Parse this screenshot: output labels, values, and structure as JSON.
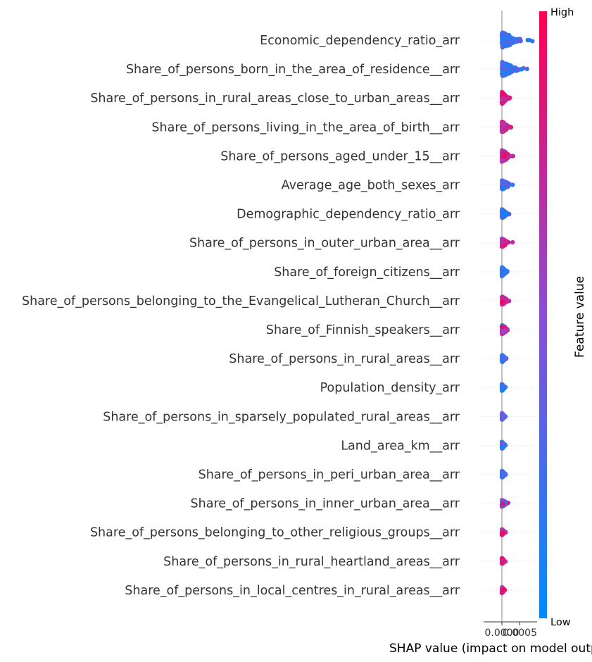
{
  "chart_data": {
    "type": "scatter",
    "subtype": "shap-beeswarm",
    "xlabel": "SHAP value (impact on model output)",
    "x_ticks": [
      {
        "value": 0.0,
        "label": "0.0000"
      },
      {
        "value": 0.0005,
        "label": "0.0005"
      }
    ],
    "xlim": [
      -0.00048,
      0.00092
    ],
    "colorbar": {
      "label": "Feature value",
      "high_label": "High",
      "low_label": "Low",
      "colors": {
        "low": "#008bfb",
        "mid": "#8a4dd6",
        "high": "#ff0052"
      }
    },
    "features": [
      {
        "name": "Economic_dependency_ratio_arr",
        "min": -0.00045,
        "max": 0.00085,
        "high_side": "left",
        "density": 1.0
      },
      {
        "name": "Share_of_persons_born_in_the_area_of_residence__arr",
        "min": -0.00045,
        "max": 0.0007,
        "high_side": "left",
        "density": 0.95
      },
      {
        "name": "Share_of_persons_in_rural_areas_close_to_urban_areas__arr",
        "min": -0.00015,
        "max": 0.00025,
        "high_side": "right",
        "density": 0.8
      },
      {
        "name": "Share_of_persons_living_in_the_area_of_birth__arr",
        "min": -0.0003,
        "max": 0.00025,
        "high_side": "right",
        "density": 0.7
      },
      {
        "name": "Share_of_persons_aged_under_15__arr",
        "min": -0.0003,
        "max": 0.0004,
        "high_side": "right",
        "density": 0.75
      },
      {
        "name": "Average_age_both_sexes_arr",
        "min": -0.0003,
        "max": 0.0003,
        "high_side": "left",
        "density": 0.65
      },
      {
        "name": "Demographic_dependency_ratio_arr",
        "min": -0.0002,
        "max": 0.0002,
        "high_side": "left",
        "density": 0.6
      },
      {
        "name": "Share_of_persons_in_outer_urban_area__arr",
        "min": -0.00015,
        "max": 0.0003,
        "high_side": "right",
        "density": 0.55
      },
      {
        "name": "Share_of_foreign_citizens__arr",
        "min": -0.0002,
        "max": 0.00015,
        "high_side": "left",
        "density": 0.6
      },
      {
        "name": "Share_of_persons_belonging_to_the_Evangelical_Lutheran_Church__arr",
        "min": -0.00025,
        "max": 0.0002,
        "high_side": "right",
        "density": 0.55
      },
      {
        "name": "Share_of_Finnish_speakers__arr",
        "min": -0.0002,
        "max": 0.00025,
        "high_side": "both",
        "density": 0.6
      },
      {
        "name": "Share_of_persons_in_rural_areas__arr",
        "min": -0.00015,
        "max": 0.00012,
        "high_side": "left",
        "density": 0.5
      },
      {
        "name": "Population_density_arr",
        "min": -0.00012,
        "max": 0.0001,
        "high_side": "left",
        "density": 0.45
      },
      {
        "name": "Share_of_persons_in_sparsely_populated_rural_areas__arr",
        "min": -0.00012,
        "max": 0.0001,
        "high_side": "left",
        "density": 0.45
      },
      {
        "name": "Land_area_km__arr",
        "min": -0.00015,
        "max": 0.0001,
        "high_side": "left",
        "density": 0.45
      },
      {
        "name": "Share_of_persons_in_peri_urban_area__arr",
        "min": -0.00015,
        "max": 0.0001,
        "high_side": "left",
        "density": 0.45
      },
      {
        "name": "Share_of_persons_in_inner_urban_area__arr",
        "min": -0.0002,
        "max": 0.0002,
        "high_side": "both",
        "density": 0.45
      },
      {
        "name": "Share_of_persons_belonging_to_other_religious_groups__arr",
        "min": -0.0001,
        "max": 0.0001,
        "high_side": "right",
        "density": 0.4
      },
      {
        "name": "Share_of_persons_in_rural_heartland_areas__arr",
        "min": -0.0001,
        "max": 0.0001,
        "high_side": "right",
        "density": 0.4
      },
      {
        "name": "Share_of_persons_in_local_centres_in_rural_areas__arr",
        "min": -0.0001,
        "max": 0.0001,
        "high_side": "right",
        "density": 0.4
      }
    ]
  }
}
